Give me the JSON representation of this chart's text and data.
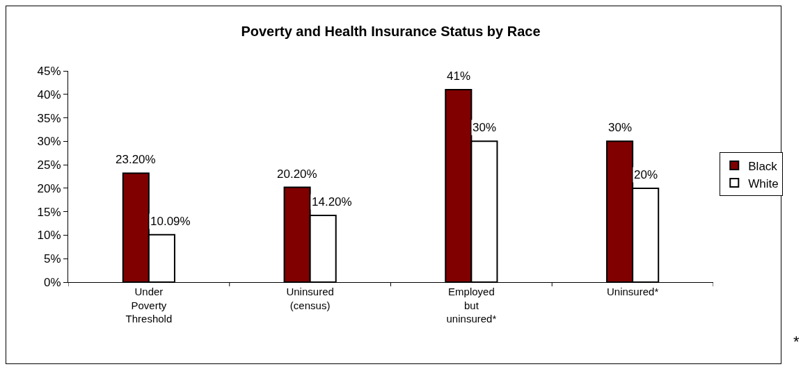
{
  "chart_data": {
    "type": "bar",
    "title": "Poverty and Health Insurance Status by Race",
    "categories": [
      "Under Poverty Threshold",
      "Uninsured (census)",
      "Employed but uninsured*",
      "Uninsured*"
    ],
    "series": [
      {
        "name": "Black",
        "color": "#800000",
        "values": [
          23.2,
          20.2,
          41,
          30
        ],
        "value_labels": [
          "23.20%",
          "20.20%",
          "41%",
          "30%"
        ]
      },
      {
        "name": "White",
        "color": "#ffffff",
        "values": [
          10.09,
          14.2,
          30,
          20
        ],
        "value_labels": [
          "10.09%",
          "14.20%",
          "30%",
          "20%"
        ]
      }
    ],
    "ylim": [
      0,
      45
    ],
    "yticks": [
      {
        "value": 0,
        "label": "0%"
      },
      {
        "value": 5,
        "label": "5%"
      },
      {
        "value": 10,
        "label": "10%"
      },
      {
        "value": 15,
        "label": "15%"
      },
      {
        "value": 20,
        "label": "20%"
      },
      {
        "value": 25,
        "label": "25%"
      },
      {
        "value": 30,
        "label": "30%"
      },
      {
        "value": 35,
        "label": "35%"
      },
      {
        "value": 40,
        "label": "40%"
      },
      {
        "value": 45,
        "label": "45%"
      }
    ],
    "grid": false,
    "legend": "right",
    "annotations": [
      "*"
    ]
  }
}
